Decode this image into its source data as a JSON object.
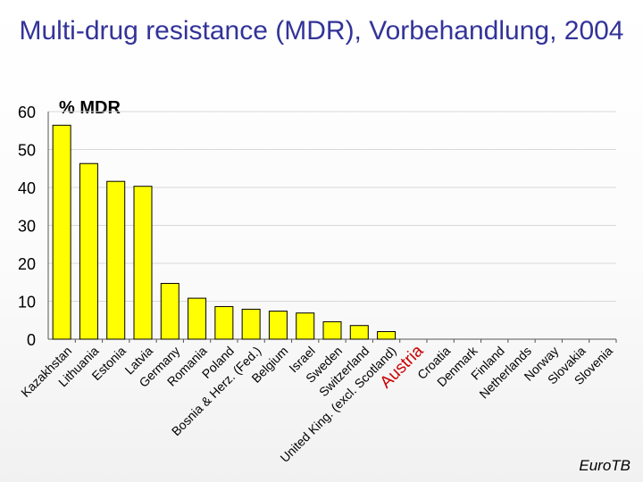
{
  "page": {
    "title": "Multi-drug resistance (MDR), Vorbehandlung, 2004",
    "footer": "EuroTB"
  },
  "colors": {
    "title": "#333399",
    "highlight_label": "#cc0000",
    "bar_fill": "#ffff00",
    "grid": "#d8d8d8"
  },
  "chart_data": {
    "type": "bar",
    "title": "Multi-drug resistance (MDR), Vorbehandlung, 2004",
    "xlabel": "",
    "ylabel": "% MDR",
    "ylim": [
      0,
      60
    ],
    "yticks": [
      0,
      10,
      20,
      30,
      40,
      50,
      60
    ],
    "grid": true,
    "highlight": "Austria",
    "categories": [
      "Kazakhstan",
      "Lithuania",
      "Estonia",
      "Latvia",
      "Germany",
      "Romania",
      "Poland",
      "Bosnia & Herz. (Fed.)",
      "Belgium",
      "Israel",
      "Sweden",
      "Switzerland",
      "United King. (excl. Scotland)",
      "Austria",
      "Croatia",
      "Denmark",
      "Finland",
      "Netherlands",
      "Norway",
      "Slovakia",
      "Slovenia"
    ],
    "values": [
      56.4,
      46.3,
      41.6,
      40.3,
      14.7,
      10.8,
      8.6,
      7.9,
      7.4,
      6.9,
      4.6,
      3.6,
      2.0,
      0,
      0,
      0,
      0,
      0,
      0,
      0,
      0
    ]
  }
}
